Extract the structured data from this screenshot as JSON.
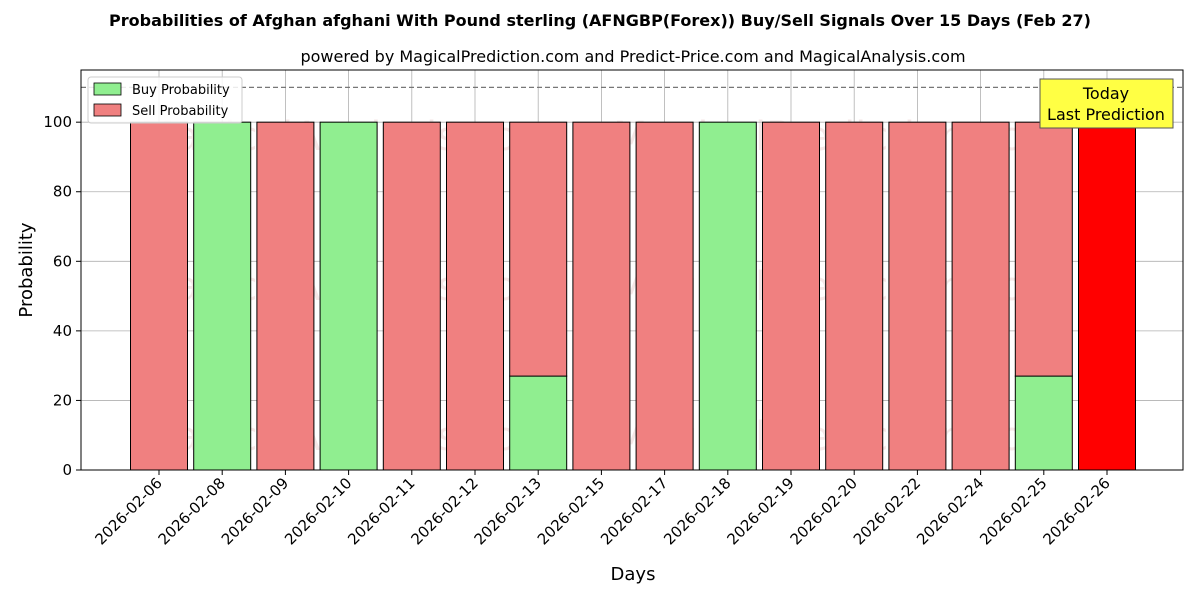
{
  "chart_data": {
    "type": "bar",
    "title": "Probabilities of Afghan afghani With Pound sterling (AFNGBP(Forex)) Buy/Sell Signals Over 15 Days (Feb 27)",
    "subtitle": "powered by MagicalPrediction.com and Predict-Price.com and MagicalAnalysis.com",
    "xlabel": "Days",
    "ylabel": "Probability",
    "ylim": [
      0,
      115
    ],
    "yticks": [
      0,
      20,
      40,
      60,
      80,
      100
    ],
    "reference_line": 110,
    "grid": true,
    "legend_position": "top-left",
    "categories": [
      "2026-02-06",
      "2026-02-08",
      "2026-02-09",
      "2026-02-10",
      "2026-02-11",
      "2026-02-12",
      "2026-02-13",
      "2026-02-15",
      "2026-02-17",
      "2026-02-18",
      "2026-02-19",
      "2026-02-20",
      "2026-02-22",
      "2026-02-24",
      "2026-02-25",
      "2026-02-26"
    ],
    "series": [
      {
        "name": "Buy Probability",
        "color": "#90ee90",
        "values": [
          0,
          100,
          0,
          100,
          0,
          0,
          27,
          0,
          0,
          100,
          0,
          0,
          0,
          0,
          27,
          0
        ]
      },
      {
        "name": "Sell Probability",
        "color": "#f08080",
        "values": [
          100,
          0,
          100,
          0,
          100,
          100,
          73,
          100,
          100,
          0,
          100,
          100,
          100,
          100,
          73,
          100
        ]
      }
    ],
    "highlight": {
      "category": "2026-02-26",
      "color": "#ff0000",
      "label_line1": "Today",
      "label_line2": "Last Prediction",
      "label_bg": "#ffff44"
    },
    "watermarks": [
      "MagicalAnalysis.com",
      "MagicalPrediction.com"
    ]
  }
}
